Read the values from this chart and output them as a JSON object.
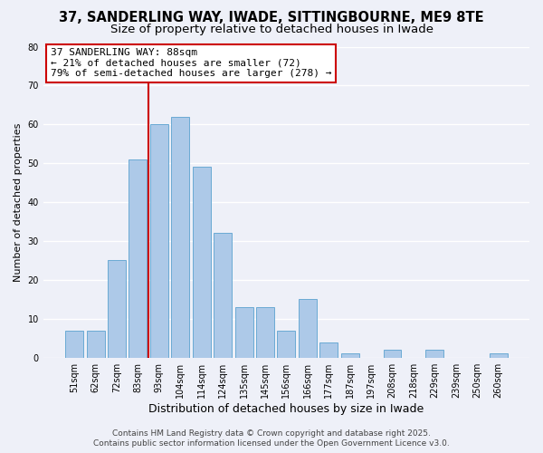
{
  "title": "37, SANDERLING WAY, IWADE, SITTINGBOURNE, ME9 8TE",
  "subtitle": "Size of property relative to detached houses in Iwade",
  "xlabel": "Distribution of detached houses by size in Iwade",
  "ylabel": "Number of detached properties",
  "bar_labels": [
    "51sqm",
    "62sqm",
    "72sqm",
    "83sqm",
    "93sqm",
    "104sqm",
    "114sqm",
    "124sqm",
    "135sqm",
    "145sqm",
    "156sqm",
    "166sqm",
    "177sqm",
    "187sqm",
    "197sqm",
    "208sqm",
    "218sqm",
    "229sqm",
    "239sqm",
    "250sqm",
    "260sqm"
  ],
  "bar_values": [
    7,
    7,
    25,
    51,
    60,
    62,
    49,
    32,
    13,
    13,
    7,
    15,
    4,
    1,
    0,
    2,
    0,
    2,
    0,
    0,
    1
  ],
  "bar_color": "#adc9e8",
  "bar_edge_color": "#6aaad4",
  "vline_x_idx": 3,
  "vline_color": "#cc0000",
  "ylim": [
    0,
    80
  ],
  "yticks": [
    0,
    10,
    20,
    30,
    40,
    50,
    60,
    70,
    80
  ],
  "annotation_title": "37 SANDERLING WAY: 88sqm",
  "annotation_line1": "← 21% of detached houses are smaller (72)",
  "annotation_line2": "79% of semi-detached houses are larger (278) →",
  "footer_line1": "Contains HM Land Registry data © Crown copyright and database right 2025.",
  "footer_line2": "Contains public sector information licensed under the Open Government Licence v3.0.",
  "background_color": "#eef0f8",
  "grid_color": "#ffffff",
  "title_fontsize": 10.5,
  "subtitle_fontsize": 9.5,
  "ylabel_fontsize": 8,
  "xlabel_fontsize": 9,
  "tick_fontsize": 7,
  "footer_fontsize": 6.5,
  "annot_fontsize": 8
}
